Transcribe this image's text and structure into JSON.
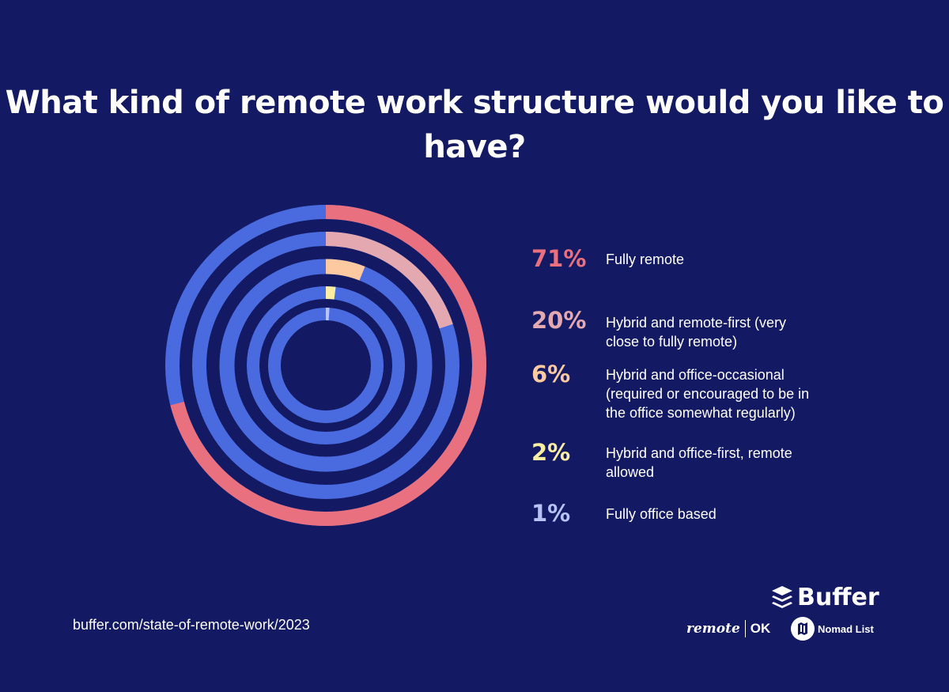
{
  "title": "What kind of remote work structure would you like to have?",
  "source": "buffer.com/state-of-remote-work/2023",
  "logos": {
    "buffer": "Buffer",
    "remote": "remote",
    "ok": "OK",
    "nomad": "Nomad List"
  },
  "colors": {
    "background": "#131a63",
    "remainder": "#4a6be0"
  },
  "chart_data": {
    "type": "radial-bar",
    "title": "What kind of remote work structure would you like to have?",
    "max": 100,
    "series": [
      {
        "label": "Fully remote",
        "value": 71,
        "display": "71%",
        "color": "#e8707f"
      },
      {
        "label": "Hybrid and remote-first (very close to fully remote)",
        "value": 20,
        "display": "20%",
        "color": "#e4a9b0"
      },
      {
        "label": "Hybrid and office-occasional (required or encouraged to be in the office somewhat regularly)",
        "value": 6,
        "display": "6%",
        "color": "#fcc9a0"
      },
      {
        "label": "Hybrid and office-first, remote allowed",
        "value": 2,
        "display": "2%",
        "color": "#fbeea0"
      },
      {
        "label": "Fully office based",
        "value": 1,
        "display": "1%",
        "color": "#b8c3f5"
      }
    ]
  }
}
